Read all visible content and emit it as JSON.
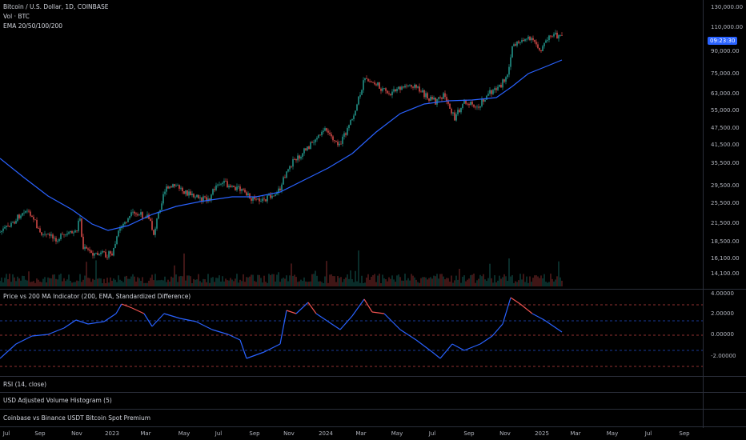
{
  "main_legend": {
    "title": "Bitcoin / U.S. Dollar, 1D, COINBASE",
    "volume": "Vol · BTC",
    "ema": "EMA 20/50/100/200"
  },
  "price_axis": [
    "130,000.00",
    "110,000.00",
    "90,000.00",
    "75,000.00",
    "63,000.00",
    "55,000.00",
    "47,500.00",
    "41,500.00",
    "35,500.00",
    "29,500.00",
    "25,500.00",
    "21,500.00",
    "18,500.00",
    "16,100.00",
    "14,100.00"
  ],
  "price_tag": "09:23:30",
  "indicator": {
    "label": "Price vs 200 MA Indicator (200, EMA, Standardized Difference)",
    "axis": [
      "4.00000",
      "2.00000",
      "0.00000",
      "-2.00000"
    ]
  },
  "panes": {
    "rsi": "RSI (14, close)",
    "volume_hist": "USD Adjusted Volume Histogram (5)",
    "premium": "Coinbase vs Binance USDT Bitcoin Spot Premium"
  },
  "time_axis": [
    "Jul",
    "Sep",
    "Nov",
    "2023",
    "Mar",
    "May",
    "Jul",
    "Sep",
    "Nov",
    "2024",
    "Mar",
    "May",
    "Jul",
    "Sep",
    "Nov",
    "2025",
    "Mar",
    "May",
    "Jul",
    "Sep"
  ],
  "colors": {
    "candle_up": "#26a69a",
    "candle_down": "#ef5350",
    "ema": "#2962ff",
    "osc_pos": "#2962ff",
    "osc_hot": "#ef5350",
    "dash_red": "#ef5350",
    "dash_blue": "#2962ff"
  }
}
